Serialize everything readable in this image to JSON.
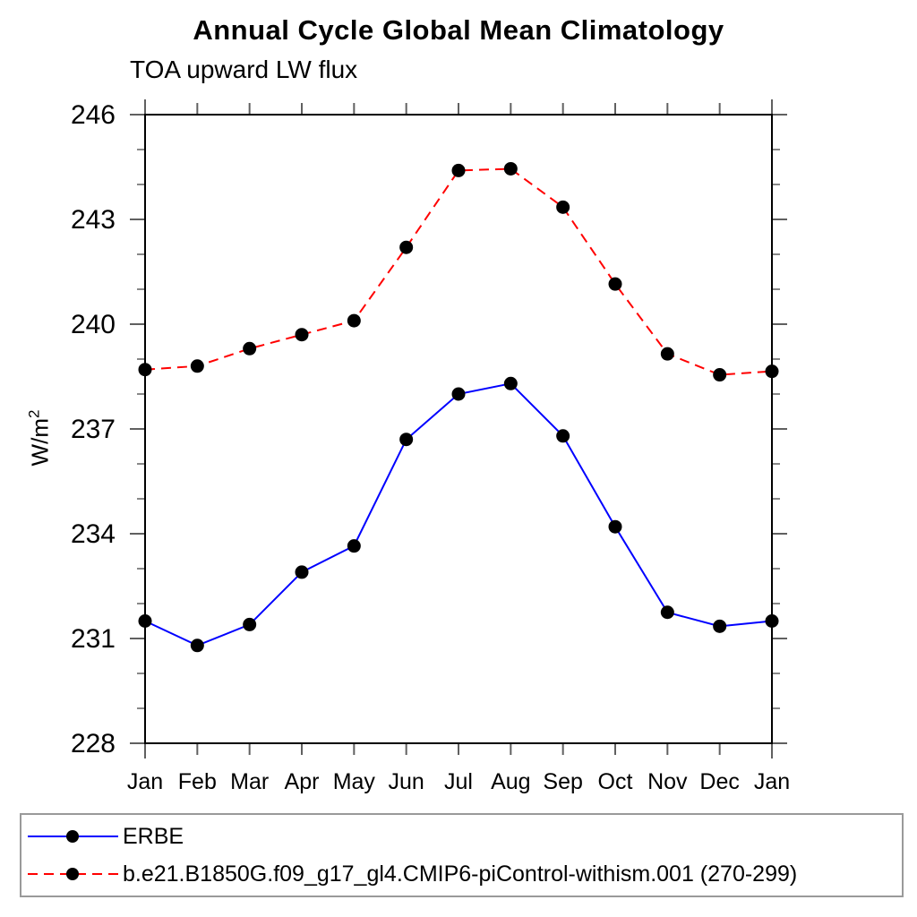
{
  "header": {
    "title": "Annual Cycle Global Mean Climatology",
    "subtitle": "TOA upward LW flux"
  },
  "chart_data": {
    "type": "line",
    "title": "Annual Cycle Global Mean Climatology",
    "subtitle": "TOA upward LW flux",
    "xlabel": "",
    "ylabel": "W/m²",
    "categories": [
      "Jan",
      "Feb",
      "Mar",
      "Apr",
      "May",
      "Jun",
      "Jul",
      "Aug",
      "Sep",
      "Oct",
      "Nov",
      "Dec",
      "Jan"
    ],
    "ylim": [
      228,
      246
    ],
    "ytick_major_step": 3,
    "ytick_minor_step": 1,
    "ytick_labels": [
      "228",
      "231",
      "234",
      "237",
      "240",
      "243",
      "246"
    ],
    "grid": false,
    "legend_position": "bottom-box",
    "axis_color": "#000000",
    "tick_color": "#606060",
    "marker": "filled-circle",
    "marker_color": "#000000",
    "series": [
      {
        "name": "ERBE",
        "color": "#0000ff",
        "line_style": "solid",
        "values": [
          231.5,
          230.8,
          231.4,
          232.9,
          233.65,
          236.7,
          238.0,
          238.3,
          236.8,
          234.2,
          231.75,
          231.35,
          231.5
        ]
      },
      {
        "name": "b.e21.B1850G.f09_g17_gl4.CMIP6-piControl-withism.001 (270-299)",
        "color": "#ff0000",
        "line_style": "dashed",
        "values": [
          238.7,
          238.8,
          239.3,
          239.7,
          240.1,
          242.2,
          244.4,
          244.45,
          243.35,
          241.15,
          239.15,
          238.55,
          238.65
        ]
      }
    ]
  }
}
